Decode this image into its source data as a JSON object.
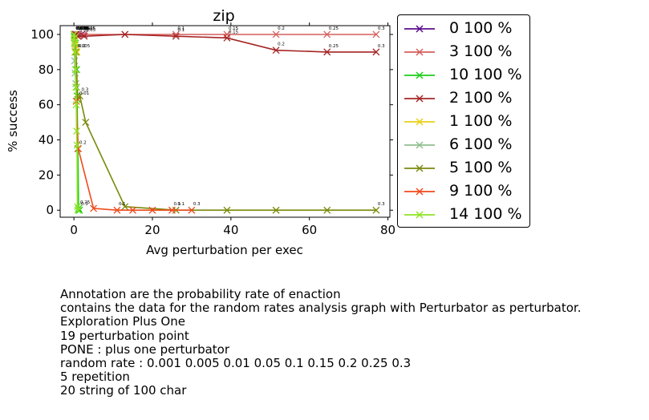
{
  "chart_data": {
    "type": "line",
    "title": "zip",
    "xlabel": "Avg perturbation per exec",
    "ylabel": "% success",
    "xlim": [
      -3.5,
      80.5
    ],
    "ylim": [
      -4,
      105
    ],
    "xticks": [
      0,
      20,
      40,
      60,
      80
    ],
    "yticks": [
      0,
      20,
      40,
      60,
      80,
      100
    ],
    "grid": false,
    "legend_position": "outside-right",
    "series": [
      {
        "name": "0 100 %",
        "color": "#5b0d8c",
        "points": [
          [
            0.1,
            100
          ],
          [
            0.3,
            100
          ],
          [
            0.5,
            100
          ],
          [
            1.0,
            100
          ],
          [
            2.0,
            100
          ],
          [
            2.6,
            100
          ]
        ],
        "labels": [
          "0.001",
          "0.005",
          "0.01",
          "0.05",
          "0.1",
          "0.15"
        ]
      },
      {
        "name": "3 100 %",
        "color": "#d45f5c",
        "points": [
          [
            0.1,
            100
          ],
          [
            0.5,
            100
          ],
          [
            1.0,
            100
          ],
          [
            2.6,
            100
          ],
          [
            13,
            100
          ],
          [
            26,
            100
          ],
          [
            39,
            100
          ],
          [
            51.5,
            100
          ],
          [
            64.5,
            100
          ],
          [
            77,
            100
          ]
        ],
        "labels": [
          "0.001",
          "0.005",
          "0.01",
          "0.05",
          "",
          "0.1",
          "0.15",
          "0.2",
          "0.25",
          "0.3"
        ]
      },
      {
        "name": "10 100 %",
        "color": "#1ecd1b",
        "points": [
          [
            0.05,
            100
          ],
          [
            0.1,
            99
          ],
          [
            0.2,
            98
          ],
          [
            0.3,
            97
          ],
          [
            0.4,
            95
          ],
          [
            0.5,
            90
          ],
          [
            0.7,
            80
          ],
          [
            0.8,
            65
          ],
          [
            1.0,
            35
          ],
          [
            1.2,
            1
          ],
          [
            1.4,
            0
          ]
        ],
        "labels": [
          "0.001",
          "",
          "",
          "",
          "",
          "",
          "",
          "",
          "0.2",
          "0.25",
          "0.3"
        ]
      },
      {
        "name": "2 100 %",
        "color": "#a52424",
        "points": [
          [
            0.1,
            100
          ],
          [
            0.5,
            100
          ],
          [
            1.0,
            99
          ],
          [
            2.6,
            99
          ],
          [
            13,
            100
          ],
          [
            26,
            99
          ],
          [
            39,
            98
          ],
          [
            51.5,
            91
          ],
          [
            64.5,
            90
          ],
          [
            77,
            90
          ]
        ],
        "labels": [
          "0.001",
          "0.005",
          "0.01",
          "0.05",
          "",
          "0.1",
          "0.15",
          "0.2",
          "0.25",
          "0.3"
        ]
      },
      {
        "name": "1 100 %",
        "color": "#e8d117",
        "points": [
          [
            0.05,
            100
          ],
          [
            0.1,
            98
          ],
          [
            0.2,
            96
          ],
          [
            0.3,
            94
          ],
          [
            0.5,
            92
          ],
          [
            0.8,
            90
          ]
        ],
        "labels": [
          "0.001",
          "",
          "",
          "",
          "",
          "0.2"
        ]
      },
      {
        "name": "6 100 %",
        "color": "#8fbf8f",
        "points": [
          [
            0.05,
            100
          ],
          [
            0.1,
            95
          ],
          [
            0.2,
            85
          ],
          [
            0.3,
            78
          ],
          [
            0.5,
            72
          ],
          [
            0.7,
            70
          ]
        ],
        "labels": [
          "0.001",
          "",
          "",
          "",
          "",
          ""
        ]
      },
      {
        "name": "5 100 %",
        "color": "#7b8a0c",
        "points": [
          [
            0.1,
            100
          ],
          [
            0.5,
            90
          ],
          [
            1.0,
            63
          ],
          [
            1.5,
            65
          ],
          [
            3,
            50
          ],
          [
            13,
            2
          ],
          [
            26,
            0
          ],
          [
            39,
            0
          ],
          [
            51.5,
            0
          ],
          [
            64.5,
            0
          ],
          [
            77,
            0
          ]
        ],
        "labels": [
          "0.001",
          "0.005",
          "0.01",
          "0.3",
          "",
          "",
          "0.1",
          "",
          "",
          "",
          "0.3"
        ]
      },
      {
        "name": "9 100 %",
        "color": "#ef4a1c",
        "points": [
          [
            0.1,
            100
          ],
          [
            0.3,
            90
          ],
          [
            0.6,
            62
          ],
          [
            1.1,
            35
          ],
          [
            5,
            1
          ],
          [
            11,
            0
          ],
          [
            15,
            0
          ],
          [
            20,
            0
          ],
          [
            25,
            0
          ],
          [
            30,
            0
          ]
        ],
        "labels": [
          "0.001",
          "",
          "",
          "",
          "",
          "0.1",
          "",
          "",
          "0.1",
          "0.3"
        ]
      },
      {
        "name": "14 100 %",
        "color": "#8ee325",
        "points": [
          [
            0.05,
            100
          ],
          [
            0.1,
            98
          ],
          [
            0.2,
            95
          ],
          [
            0.3,
            90
          ],
          [
            0.4,
            80
          ],
          [
            0.5,
            70
          ],
          [
            0.6,
            60
          ],
          [
            0.7,
            45
          ],
          [
            0.8,
            37
          ],
          [
            0.9,
            2
          ],
          [
            1.0,
            0
          ]
        ],
        "labels": [
          "0.001",
          "",
          "",
          "",
          "",
          "",
          "",
          "",
          "",
          "",
          ""
        ]
      }
    ]
  },
  "caption": {
    "lines": [
      "Annotation are the probability rate of enaction",
      "contains the data for the random rates analysis graph with Perturbator as perturbator.",
      "Exploration Plus One",
      "19 perturbation point",
      "PONE : plus one perturbator",
      "random rate : 0.001 0.005 0.01 0.05 0.1 0.15 0.2 0.25 0.3",
      "5 repetition",
      "20 string of 100 char"
    ]
  }
}
